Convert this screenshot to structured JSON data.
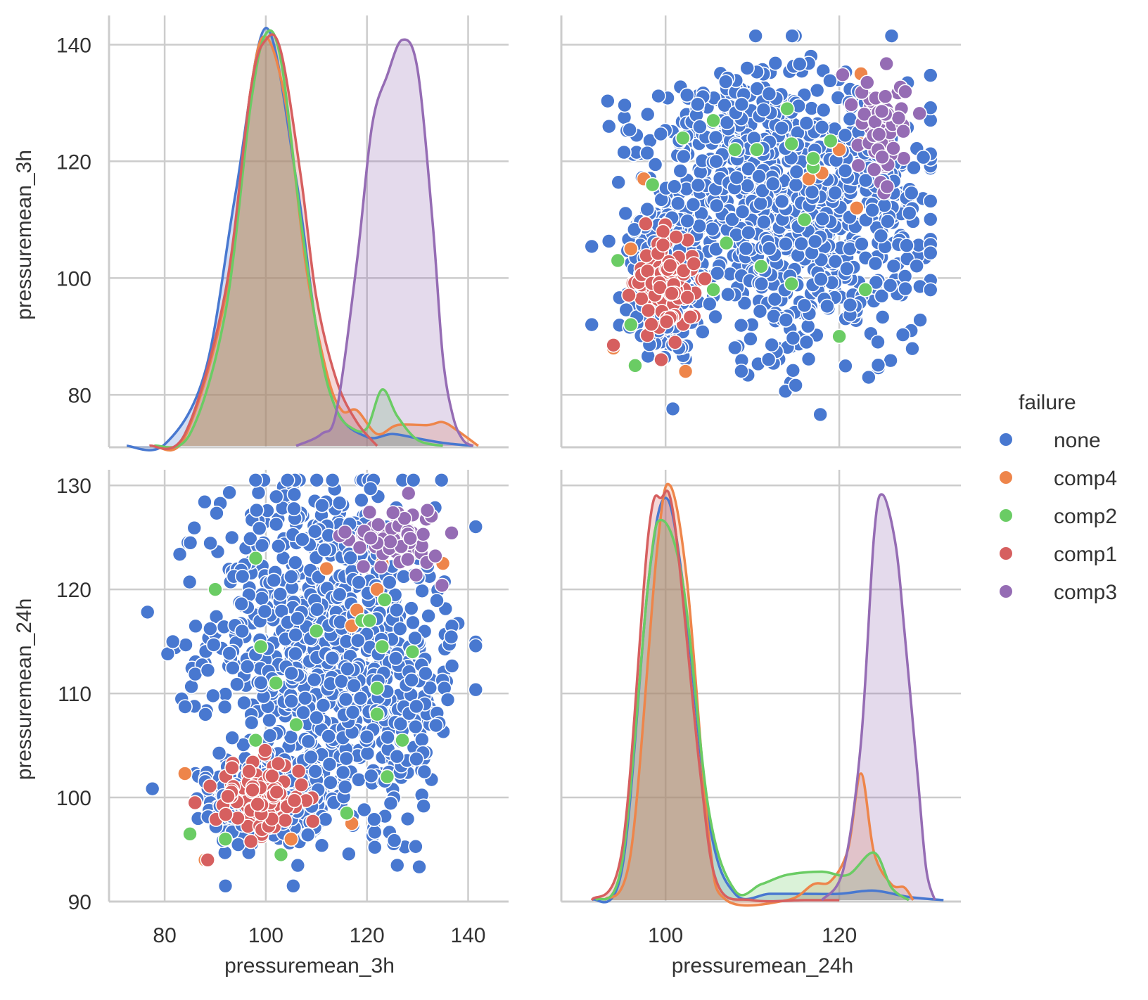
{
  "chart_data": {
    "type": "pairplot",
    "variables": [
      "pressuremean_3h",
      "pressuremean_24h"
    ],
    "hue_variable": "failure",
    "legend": {
      "title": "failure",
      "placement": "right",
      "entries": [
        {
          "label": "none",
          "color": "#4878d0"
        },
        {
          "label": "comp4",
          "color": "#ee854a"
        },
        {
          "label": "comp2",
          "color": "#6acc64"
        },
        {
          "label": "comp1",
          "color": "#d65f5f"
        },
        {
          "label": "comp3",
          "color": "#956cb4"
        }
      ]
    },
    "axes": {
      "pressuremean_3h": {
        "label": "pressuremean_3h",
        "range": [
          69,
          148
        ],
        "ticks": [
          80,
          100,
          120,
          140
        ],
        "tick_labels": [
          "80",
          "100",
          "120",
          "140"
        ]
      },
      "pressuremean_24h": {
        "label": "pressuremean_24h",
        "range": [
          88,
          134
        ],
        "ticks": [
          100,
          120
        ],
        "tick_labels": [
          "100",
          "120"
        ]
      },
      "row0_y": {
        "label": "pressuremean_3h",
        "range": [
          71,
          145
        ],
        "ticks": [
          80,
          100,
          120,
          140
        ],
        "tick_labels": [
          "80",
          "100",
          "120",
          "140"
        ]
      },
      "row1_y": {
        "label": "pressuremean_24h",
        "range": [
          90,
          131.5
        ],
        "ticks": [
          90,
          100,
          110,
          120,
          130
        ],
        "tick_labels": [
          "90",
          "100",
          "110",
          "120",
          "130"
        ]
      }
    },
    "kde_3h": {
      "peak_scale": 140,
      "series": [
        {
          "name": "none",
          "points": [
            [
              72.5,
              0
            ],
            [
              80,
              0.5
            ],
            [
              88,
              25
            ],
            [
              94,
              85
            ],
            [
              100,
              141
            ],
            [
              106,
              90
            ],
            [
              110,
              40
            ],
            [
              114,
              12
            ],
            [
              120,
              3
            ],
            [
              125,
              4
            ],
            [
              130,
              2.5
            ],
            [
              135,
              1
            ],
            [
              141,
              0
            ]
          ]
        },
        {
          "name": "comp4",
          "points": [
            [
              78,
              0
            ],
            [
              84,
              3
            ],
            [
              92,
              50
            ],
            [
              97,
              120
            ],
            [
              100,
              138
            ],
            [
              104,
              115
            ],
            [
              108,
              60
            ],
            [
              112,
              25
            ],
            [
              115,
              12
            ],
            [
              118,
              12
            ],
            [
              122,
              4
            ],
            [
              126,
              7
            ],
            [
              132,
              7
            ],
            [
              135,
              8
            ],
            [
              138,
              5
            ],
            [
              142,
              0
            ]
          ]
        },
        {
          "name": "comp2",
          "points": [
            [
              78,
              0
            ],
            [
              85,
              4
            ],
            [
              92,
              45
            ],
            [
              97,
              115
            ],
            [
              100,
              139
            ],
            [
              103,
              130
            ],
            [
              107,
              75
            ],
            [
              111,
              30
            ],
            [
              114,
              12
            ],
            [
              117,
              6
            ],
            [
              120,
              6
            ],
            [
              123,
              19
            ],
            [
              126,
              10
            ],
            [
              130,
              2
            ],
            [
              135,
              0
            ]
          ]
        },
        {
          "name": "comp1",
          "points": [
            [
              77,
              0
            ],
            [
              84,
              4
            ],
            [
              92,
              52
            ],
            [
              97,
              120
            ],
            [
              100,
              137
            ],
            [
              103,
              133
            ],
            [
              107,
              90
            ],
            [
              110,
              50
            ],
            [
              114,
              22
            ],
            [
              118,
              8
            ],
            [
              122,
              0
            ]
          ]
        },
        {
          "name": "comp3",
          "points": [
            [
              106,
              0
            ],
            [
              111,
              4
            ],
            [
              114,
              12
            ],
            [
              118,
              62
            ],
            [
              121,
              108
            ],
            [
              124,
              125
            ],
            [
              127,
              137
            ],
            [
              130,
              127
            ],
            [
              133,
              75
            ],
            [
              135,
              30
            ],
            [
              137,
              10
            ],
            [
              139,
              2
            ],
            [
              141,
              0
            ]
          ]
        }
      ]
    },
    "kde_24h": {
      "peak_scale": 131,
      "series": [
        {
          "name": "none",
          "points": [
            [
              91.5,
              0
            ],
            [
              95,
              10
            ],
            [
              98,
              100
            ],
            [
              100,
              127
            ],
            [
              102,
              100
            ],
            [
              105,
              25
            ],
            [
              108,
              2
            ],
            [
              112,
              2
            ],
            [
              116,
              2
            ],
            [
              120,
              2
            ],
            [
              124,
              3
            ],
            [
              128,
              1
            ],
            [
              132,
              0
            ]
          ]
        },
        {
          "name": "comp4",
          "points": [
            [
              93,
              0
            ],
            [
              96,
              15
            ],
            [
              99,
              110
            ],
            [
              100.5,
              131
            ],
            [
              102.5,
              100
            ],
            [
              105,
              20
            ],
            [
              107,
              0
            ],
            [
              114,
              0
            ],
            [
              117,
              5
            ],
            [
              119,
              6
            ],
            [
              121,
              16
            ],
            [
              122.5,
              40
            ],
            [
              124,
              15
            ],
            [
              126,
              5
            ],
            [
              127.5,
              4
            ],
            [
              128.5,
              0
            ]
          ]
        },
        {
          "name": "comp2",
          "points": [
            [
              92,
              0
            ],
            [
              95,
              12
            ],
            [
              98,
              100
            ],
            [
              99.5,
              120
            ],
            [
              102,
              100
            ],
            [
              105,
              28
            ],
            [
              108,
              3
            ],
            [
              111,
              5
            ],
            [
              114,
              8
            ],
            [
              118,
              9
            ],
            [
              121,
              8
            ],
            [
              124,
              15
            ],
            [
              126,
              4
            ],
            [
              128,
              0
            ]
          ]
        },
        {
          "name": "comp1",
          "points": [
            [
              91.5,
              0
            ],
            [
              95,
              16
            ],
            [
              98,
              115
            ],
            [
              99.5,
              127
            ],
            [
              101,
              120
            ],
            [
              104,
              40
            ],
            [
              106,
              5
            ],
            [
              110,
              0
            ],
            [
              116,
              0
            ],
            [
              120,
              0
            ]
          ]
        },
        {
          "name": "comp3",
          "points": [
            [
              118,
              0
            ],
            [
              120.5,
              10
            ],
            [
              122.5,
              50
            ],
            [
              124,
              115
            ],
            [
              125,
              128
            ],
            [
              126.5,
              112
            ],
            [
              127.5,
              85
            ],
            [
              129,
              40
            ],
            [
              130,
              10
            ],
            [
              131,
              0
            ]
          ]
        }
      ]
    },
    "scatter": {
      "description": "pressuremean_24h (row 1 y) vs pressuremean_3h (row 1 x); mirrored in row 0",
      "clusters": [
        {
          "name": "none",
          "cx": 101,
          "cy": 99.8,
          "sx": 5.8,
          "sy": 2.2,
          "n": 420
        },
        {
          "name": "none",
          "cx": 111,
          "cy": 116,
          "sx": 11,
          "sy": 7.5,
          "n": 760
        },
        {
          "name": "none",
          "cx": 126,
          "cy": 108,
          "sx": 5.5,
          "sy": 5.5,
          "n": 160
        },
        {
          "name": "comp1",
          "cx": 99,
          "cy": 100,
          "sx": 4.5,
          "sy": 1.8,
          "n": 95
        },
        {
          "name": "comp3",
          "cx": 125.5,
          "cy": 125,
          "sx": 4.5,
          "sy": 1.6,
          "n": 65
        }
      ],
      "extra_points": {
        "comp4": [
          [
            84,
            102.3
          ],
          [
            88,
            94
          ],
          [
            105,
            96
          ],
          [
            112,
            122
          ],
          [
            117,
            116.5
          ],
          [
            118,
            118
          ],
          [
            122,
            120
          ],
          [
            123,
            122.5
          ],
          [
            135,
            122.5
          ],
          [
            117,
            97.5
          ]
        ],
        "comp2": [
          [
            85,
            96.5
          ],
          [
            90,
            120
          ],
          [
            98,
            123
          ],
          [
            99,
            114.5
          ],
          [
            102,
            111
          ],
          [
            106,
            107
          ],
          [
            110,
            116
          ],
          [
            116,
            98.5
          ],
          [
            119,
            117
          ],
          [
            120.5,
            117
          ],
          [
            122,
            110.5
          ],
          [
            122,
            108
          ],
          [
            123,
            114.5
          ],
          [
            123.5,
            119
          ],
          [
            124,
            102
          ],
          [
            127,
            105.5
          ],
          [
            129,
            114
          ],
          [
            98,
            105.5
          ],
          [
            103,
            94.5
          ],
          [
            92,
            96
          ]
        ],
        "comp1": [
          [
            86,
            99.5
          ],
          [
            88.5,
            94
          ]
        ]
      }
    }
  }
}
